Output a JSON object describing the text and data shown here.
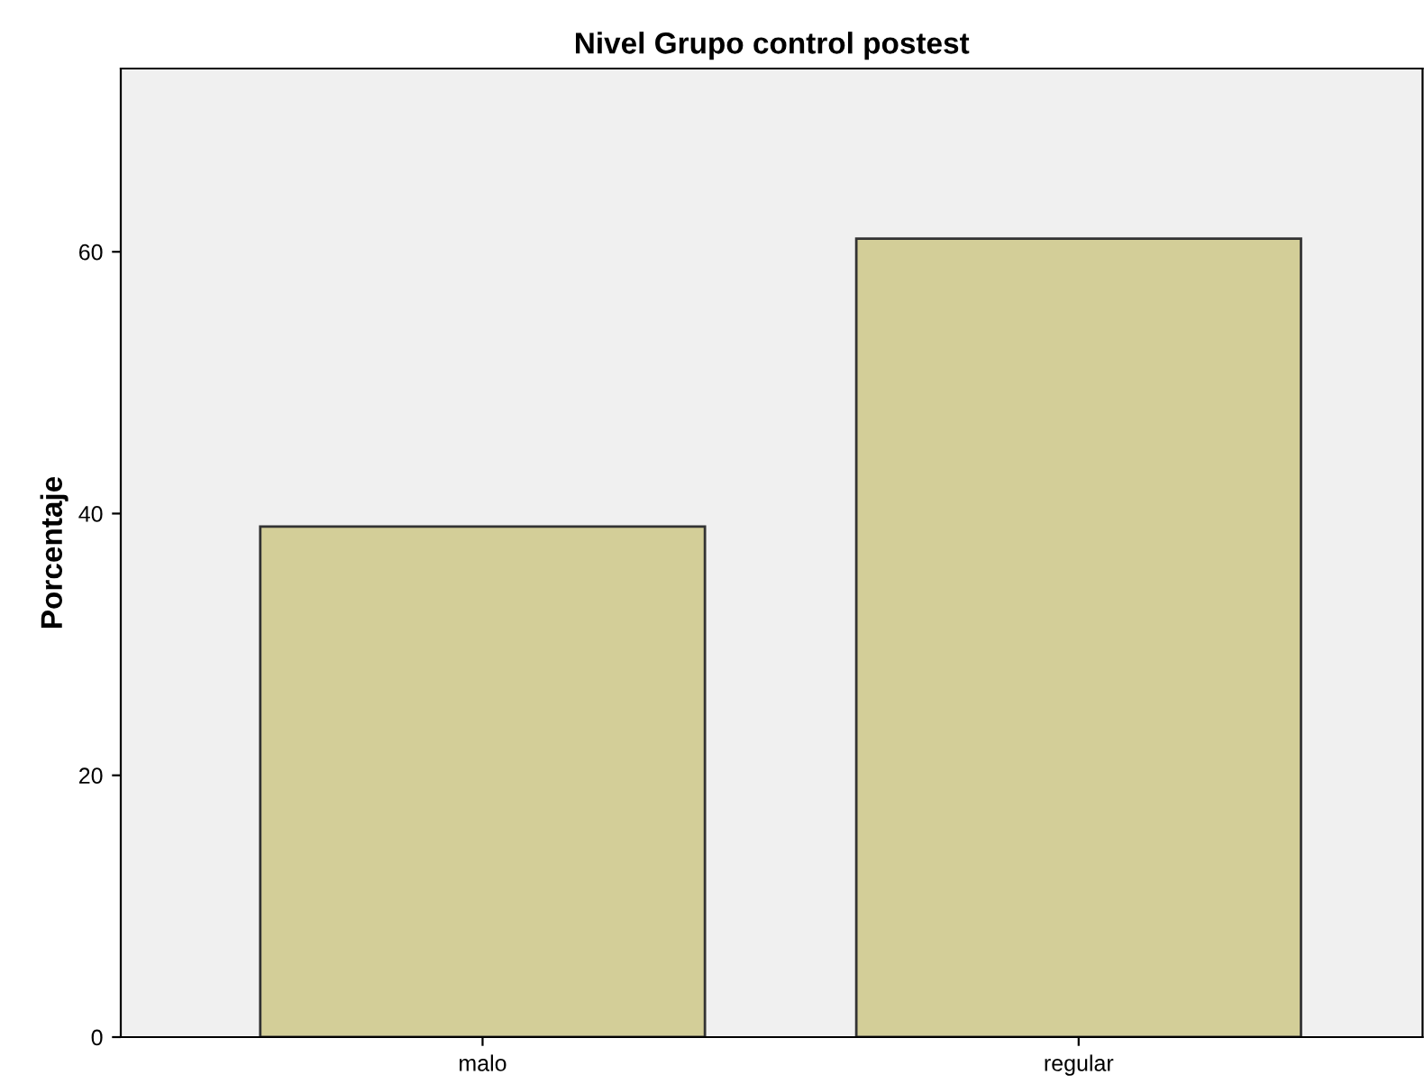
{
  "chart_data": {
    "type": "bar",
    "title": "Nivel Grupo control postest",
    "ylabel": "Porcentaje",
    "categories": [
      "malo",
      "regular"
    ],
    "values": [
      39,
      61
    ],
    "color": "#d3ce98",
    "ylim": [
      0,
      74
    ],
    "yticks": [
      0,
      20,
      40,
      60
    ],
    "grid": false
  }
}
